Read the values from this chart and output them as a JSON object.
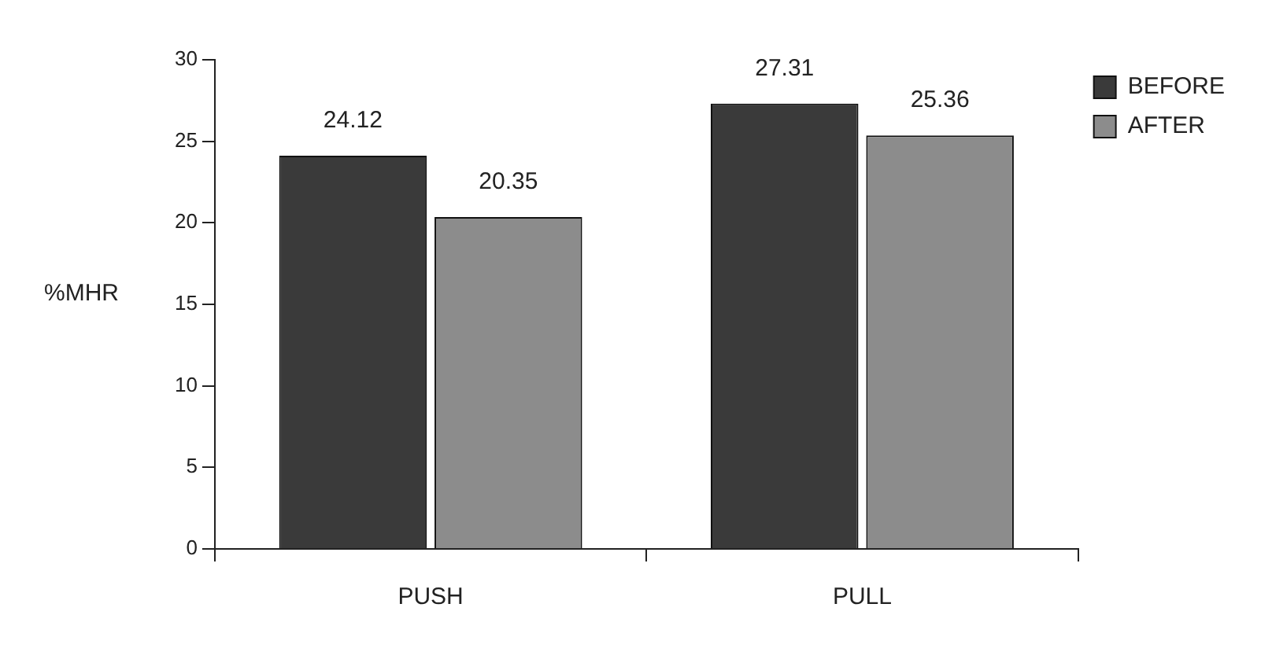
{
  "chart_data": {
    "type": "bar",
    "ylabel": "%MHR",
    "categories": [
      "PUSH",
      "PULL"
    ],
    "series": [
      {
        "name": "BEFORE",
        "color": "#3a3a3a",
        "values": [
          24.12,
          27.31
        ]
      },
      {
        "name": "AFTER",
        "color": "#8c8c8c",
        "values": [
          20.35,
          25.36
        ]
      }
    ],
    "ylim": [
      0,
      30
    ],
    "yticks": [
      0,
      5,
      10,
      15,
      20,
      25,
      30
    ],
    "grid": false,
    "legend": "top right",
    "data_labels": true
  }
}
